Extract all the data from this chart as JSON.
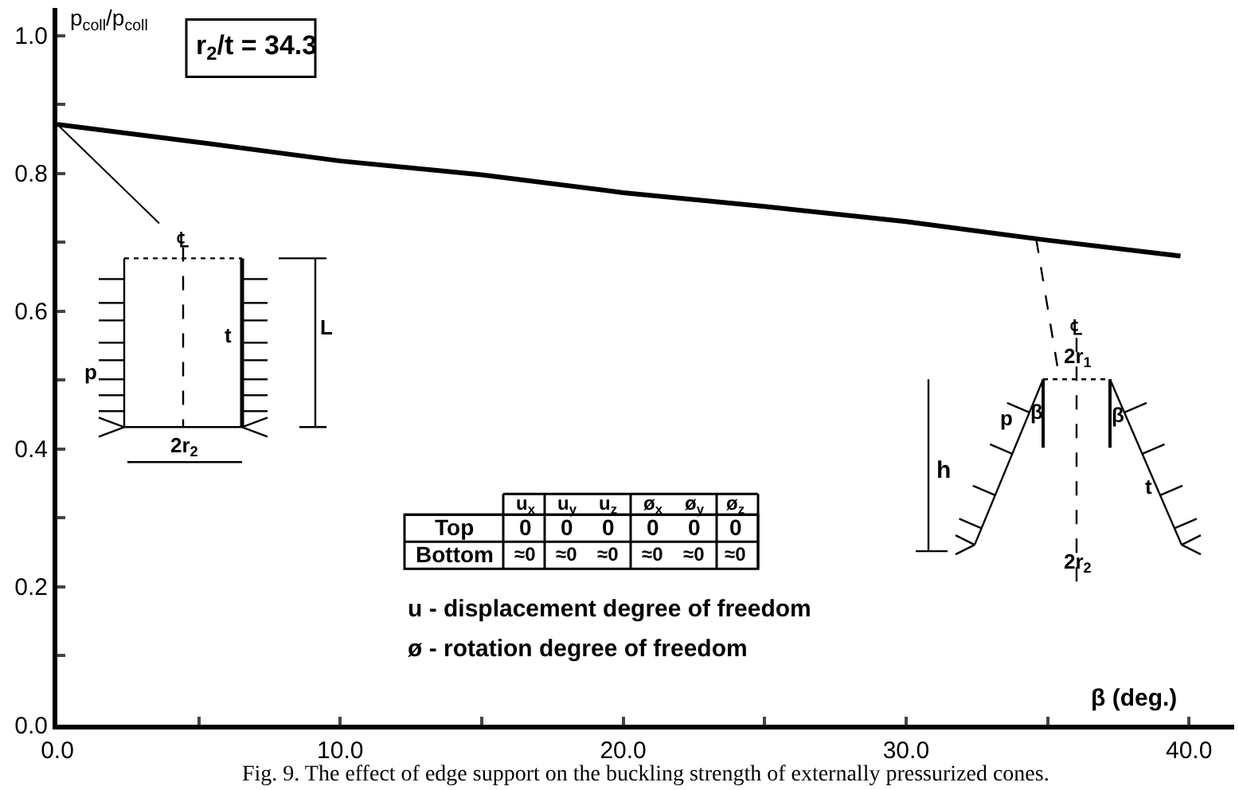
{
  "chart_data": {
    "type": "line",
    "ylabel": "p$_{coll}$/p$_{coll}$",
    "xlabel": "β (deg.)",
    "x": [
      0,
      5,
      10,
      15,
      20,
      25,
      30,
      35,
      39.7
    ],
    "series": [
      {
        "color": "#000000",
        "values": [
          0.871,
          0.845,
          0.818,
          0.798,
          0.772,
          0.752,
          0.73,
          0.703,
          0.68
        ]
      }
    ],
    "xlim": [
      0,
      41.6
    ],
    "ylim": [
      0,
      1.04
    ],
    "xticks": [
      {
        "value": 0,
        "label": "0.0"
      },
      {
        "value": 5,
        "label": null
      },
      {
        "value": 10,
        "label": "10.0"
      },
      {
        "value": 15,
        "label": null
      },
      {
        "value": 20,
        "label": "20.0"
      },
      {
        "value": 25,
        "label": null
      },
      {
        "value": 30,
        "label": "30.0"
      },
      {
        "value": 35,
        "label": null
      },
      {
        "value": 40,
        "label": "40.0"
      }
    ],
    "yticks": [
      {
        "value": 0,
        "label": "0.0"
      },
      {
        "value": 0.1,
        "label": null
      },
      {
        "value": 0.2,
        "label": "0.2"
      },
      {
        "value": 0.3,
        "label": null
      },
      {
        "value": 0.4,
        "label": "0.4"
      },
      {
        "value": 0.5,
        "label": null
      },
      {
        "value": 0.6,
        "label": "0.6"
      },
      {
        "value": 0.7,
        "label": null
      },
      {
        "value": 0.8,
        "label": "0.8"
      },
      {
        "value": 0.9,
        "label": null
      },
      {
        "value": 1.0,
        "label": "1.0"
      }
    ],
    "marker": "none",
    "line_style": "solid",
    "annotations": [
      "r$_{2}$/t = 34.3",
      "u$_{x}$",
      "u$_{y}$",
      "u$_{z}$",
      "ø$_{x}$",
      "ø$_{y}$",
      "ø$_{z}$",
      "Top",
      "0",
      "0",
      "0",
      "0",
      "0",
      "0",
      "Bottom",
      "≈0",
      "≈0",
      "≈0",
      "≈0",
      "≈0",
      "≈0",
      "u - displacement degree of freedom",
      "ø - rotation degree of freedom",
      "Fig. 9. The effect of edge support on the buckling strength of externally pressurized cones.",
      {
        "text": "℄",
        "x": 0,
        "y": 0.871
      },
      "L",
      "p",
      "t",
      "2r$_{2}$",
      "℄",
      {
        "text": "2r$_{1}$",
        "x": 34.6,
        "y": 0.705
      },
      "h",
      "p",
      "β",
      "β",
      "t",
      "2r$_{2}$"
    ]
  }
}
